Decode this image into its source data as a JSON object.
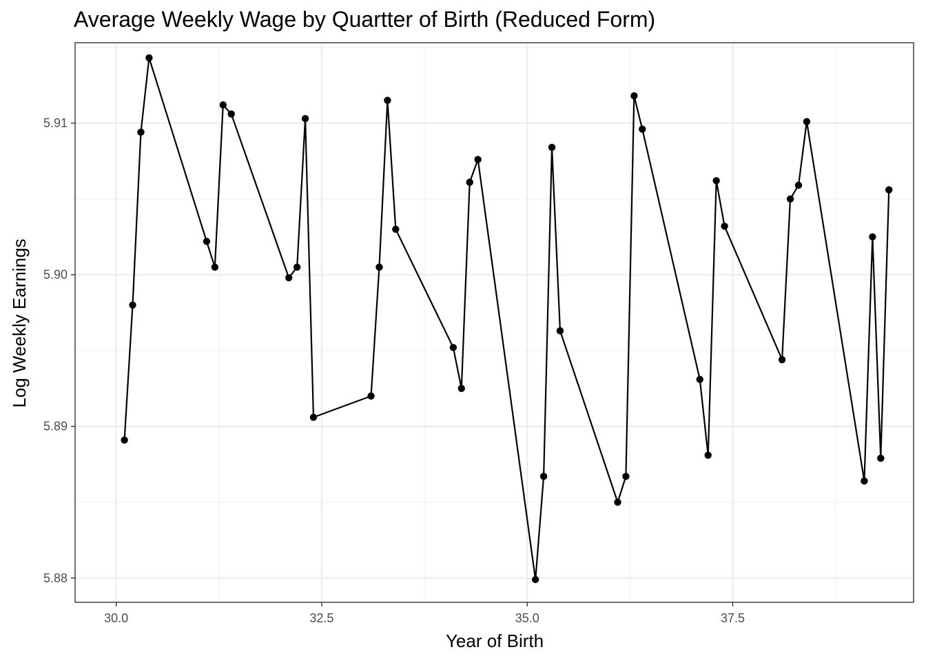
{
  "chart_data": {
    "type": "line",
    "title": "Average Weekly Wage by Quartter of Birth (Reduced Form)",
    "xlabel": "Year of Birth",
    "ylabel": "Log Weekly Earnings",
    "xlim": [
      29.5,
      39.7
    ],
    "ylim": [
      5.8784,
      5.9153
    ],
    "x_ticks": [
      30.0,
      32.5,
      35.0,
      37.5
    ],
    "x_tick_labels": [
      "30.0",
      "32.5",
      "35.0",
      "37.5"
    ],
    "y_ticks": [
      5.88,
      5.89,
      5.9,
      5.91
    ],
    "y_tick_labels": [
      "5.88",
      "5.89",
      "5.90",
      "5.91"
    ],
    "x_minor_ticks": [
      31.25,
      33.75,
      36.25,
      38.75
    ],
    "y_minor_ticks": [
      5.885,
      5.895,
      5.905,
      5.915
    ],
    "grid": true,
    "legend": "none",
    "series": [
      {
        "x": [
          30.1,
          30.2,
          30.3,
          30.4,
          31.1,
          31.2,
          31.3,
          31.4,
          32.1,
          32.2,
          32.3,
          32.4,
          33.1,
          33.2,
          33.3,
          33.4,
          34.1,
          34.2,
          34.3,
          34.4,
          35.1,
          35.2,
          35.3,
          35.4,
          36.1,
          36.2,
          36.3,
          36.4,
          37.1,
          37.2,
          37.3,
          37.4,
          38.1,
          38.2,
          38.3,
          38.4,
          39.1,
          39.2,
          39.3,
          39.4
        ],
        "y": [
          5.8891,
          5.898,
          5.9094,
          5.9143,
          5.9022,
          5.9005,
          5.9112,
          5.9106,
          5.8998,
          5.9005,
          5.9103,
          5.8906,
          5.892,
          5.9005,
          5.9115,
          5.903,
          5.8952,
          5.8925,
          5.9061,
          5.9076,
          5.8799,
          5.8867,
          5.9084,
          5.8963,
          5.885,
          5.8867,
          5.9118,
          5.9096,
          5.8931,
          5.8881,
          5.9062,
          5.9032,
          5.8944,
          5.905,
          5.9059,
          5.9101,
          5.8864,
          5.9025,
          5.8879,
          5.9056
        ]
      }
    ],
    "colors": {
      "line": "#000000",
      "points": "#000000",
      "panel_border": "#333333",
      "grid_major": "#ebebeb",
      "grid_minor": "#f2f2f2",
      "tick_text": "#4d4d4d"
    }
  }
}
